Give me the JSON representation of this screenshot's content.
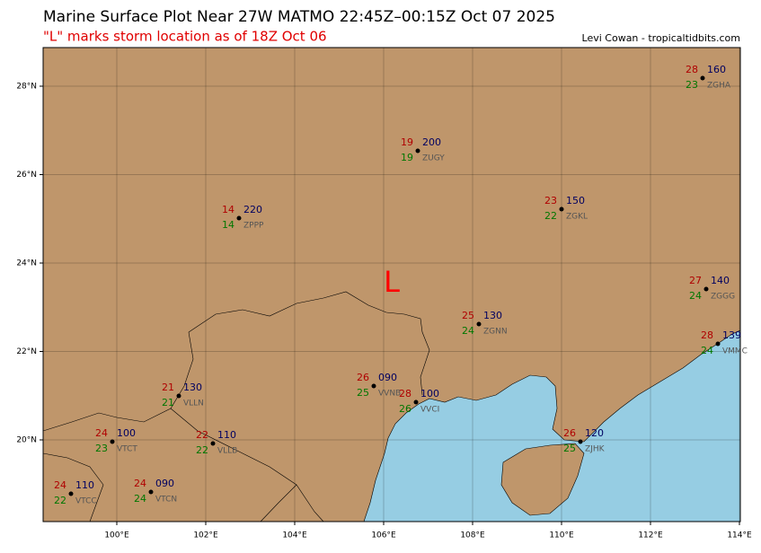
{
  "header": {
    "title": "Marine Surface Plot Near 27W MATMO 22:45Z–00:15Z Oct 07 2025",
    "subtitle": "\"L\" marks storm location as of 18Z Oct 06",
    "credit": "Levi Cowan - tropicaltidbits.com"
  },
  "map": {
    "storm_marker": "L",
    "lon_labels": [
      "100°E",
      "102°E",
      "104°E",
      "106°E",
      "108°E",
      "110°E",
      "112°E",
      "114°E"
    ],
    "lat_labels": [
      "20°N",
      "22°N",
      "24°N",
      "26°N",
      "28°N"
    ],
    "stations": [
      {
        "id": "ZGHA",
        "temp": "28",
        "dew": "23",
        "pres": "160"
      },
      {
        "id": "ZUGY",
        "temp": "19",
        "dew": "19",
        "pres": "200"
      },
      {
        "id": "ZGKL",
        "temp": "23",
        "dew": "22",
        "pres": "150"
      },
      {
        "id": "ZPPP",
        "temp": "14",
        "dew": "14",
        "pres": "220"
      },
      {
        "id": "ZGGG",
        "temp": "27",
        "dew": "24",
        "pres": "140"
      },
      {
        "id": "ZGNN",
        "temp": "25",
        "dew": "24",
        "pres": "130"
      },
      {
        "id": "VMMC",
        "temp": "28",
        "dew": "24",
        "pres": "139"
      },
      {
        "id": "VLLN",
        "temp": "21",
        "dew": "21",
        "pres": "130"
      },
      {
        "id": "VVNB",
        "temp": "26",
        "dew": "25",
        "pres": "090"
      },
      {
        "id": "VVCI",
        "temp": "28",
        "dew": "26",
        "pres": "100"
      },
      {
        "id": "VTCT",
        "temp": "24",
        "dew": "23",
        "pres": "100"
      },
      {
        "id": "VLLB",
        "temp": "22",
        "dew": "22",
        "pres": "110"
      },
      {
        "id": "ZJHK",
        "temp": "26",
        "dew": "25",
        "pres": "120"
      },
      {
        "id": "VTCC",
        "temp": "24",
        "dew": "22",
        "pres": "110"
      },
      {
        "id": "VTCN",
        "temp": "24",
        "dew": "24",
        "pres": "090"
      }
    ]
  }
}
